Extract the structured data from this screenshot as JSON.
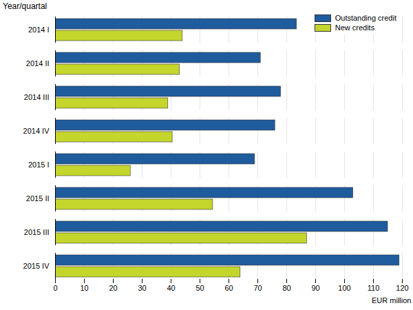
{
  "chart_data": {
    "type": "bar",
    "orientation": "horizontal",
    "ylabel": "Year/quartal",
    "xlabel": "EUR million",
    "categories": [
      "2014 I",
      "2014 II",
      "2014 III",
      "2014 IV",
      "2015 I",
      "2015 II",
      "2015 III",
      "2015 IV"
    ],
    "series": [
      {
        "name": "Outstanding credit",
        "color": "#1f5c9e",
        "values": [
          83.5,
          71,
          78,
          76,
          69,
          103,
          115,
          119
        ]
      },
      {
        "name": "New credits",
        "color": "#c4d62c",
        "values": [
          44,
          43,
          39,
          40.5,
          26,
          54.5,
          87,
          64
        ]
      }
    ],
    "xlim": [
      0,
      120
    ],
    "xticks": [
      0,
      10,
      20,
      30,
      40,
      50,
      60,
      70,
      80,
      90,
      100,
      110,
      120
    ],
    "grid": true,
    "legend": "top-right"
  }
}
